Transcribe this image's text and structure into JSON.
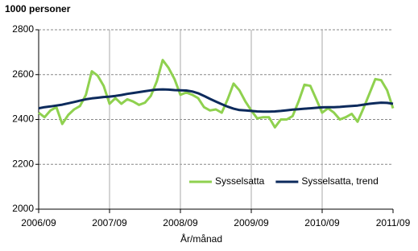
{
  "chart_data": {
    "type": "line",
    "y_label": "1000 personer",
    "x_label": "År/månad",
    "categories": [
      "2006/09",
      null,
      null,
      null,
      null,
      null,
      null,
      null,
      null,
      null,
      null,
      null,
      "2007/09",
      null,
      null,
      null,
      null,
      null,
      null,
      null,
      null,
      null,
      null,
      null,
      "2008/09",
      null,
      null,
      null,
      null,
      null,
      null,
      null,
      null,
      null,
      null,
      null,
      "2009/09",
      null,
      null,
      null,
      null,
      null,
      null,
      null,
      null,
      null,
      null,
      null,
      "2010/09",
      null,
      null,
      null,
      null,
      null,
      null,
      null,
      null,
      null,
      null,
      null,
      "2011/09"
    ],
    "series": [
      {
        "name": "Sysselsatta",
        "color": "#8fd14f",
        "values": [
          2430,
          2410,
          2440,
          2455,
          2380,
          2420,
          2445,
          2460,
          2510,
          2615,
          2595,
          2550,
          2470,
          2495,
          2470,
          2490,
          2480,
          2465,
          2475,
          2505,
          2570,
          2665,
          2630,
          2580,
          2510,
          2520,
          2510,
          2495,
          2455,
          2440,
          2445,
          2430,
          2490,
          2560,
          2530,
          2480,
          2440,
          2405,
          2410,
          2410,
          2365,
          2400,
          2400,
          2415,
          2480,
          2555,
          2550,
          2490,
          2430,
          2450,
          2430,
          2400,
          2410,
          2425,
          2390,
          2450,
          2515,
          2580,
          2575,
          2530,
          2450
        ]
      },
      {
        "name": "Sysselsatta, trend",
        "color": "#0c2a5c",
        "values": [
          2450,
          2455,
          2458,
          2462,
          2466,
          2472,
          2478,
          2484,
          2490,
          2494,
          2497,
          2500,
          2502,
          2505,
          2509,
          2514,
          2518,
          2522,
          2526,
          2530,
          2533,
          2534,
          2533,
          2531,
          2530,
          2529,
          2525,
          2517,
          2505,
          2492,
          2480,
          2468,
          2457,
          2448,
          2442,
          2440,
          2438,
          2436,
          2435,
          2435,
          2436,
          2438,
          2441,
          2444,
          2446,
          2448,
          2450,
          2452,
          2454,
          2455,
          2455,
          2456,
          2458,
          2460,
          2462,
          2466,
          2470,
          2473,
          2475,
          2474,
          2470
        ]
      }
    ],
    "ylim": [
      2000,
      2800
    ],
    "yticks": [
      2000,
      2200,
      2400,
      2600,
      2800
    ],
    "grid": true,
    "legend": "lower right"
  }
}
